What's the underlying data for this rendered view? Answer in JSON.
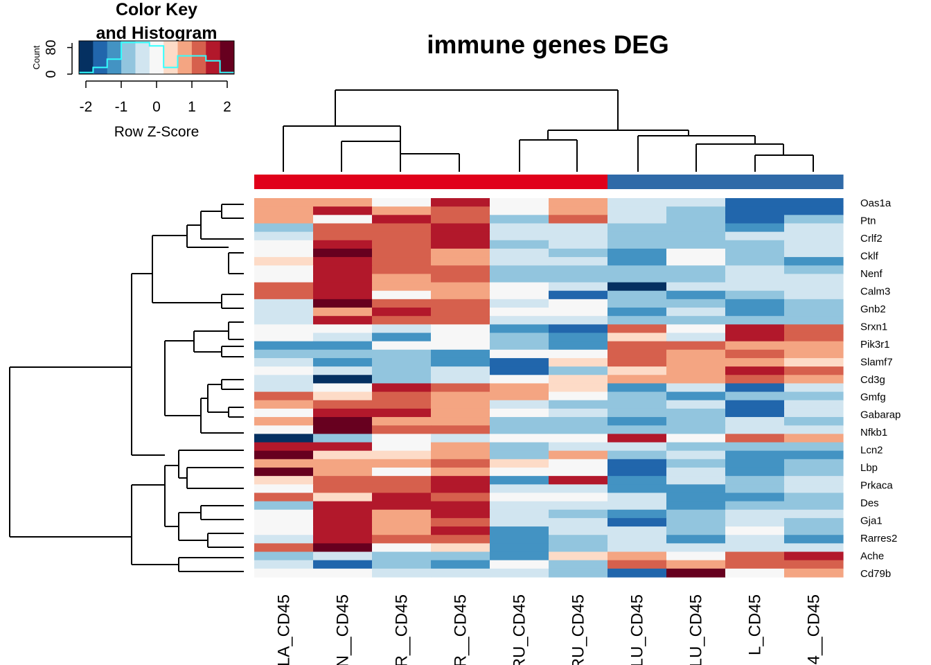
{
  "chart_data": {
    "type": "heatmap",
    "title": "immune genes DEG",
    "columns": [
      "LA_CD45",
      "N__CD45",
      "R__CD45",
      "R__CD45",
      "RU_CD45",
      "RU_CD45",
      "LU_CD45",
      "LU_CD45",
      "L_CD45",
      "4__CD45"
    ],
    "column_groups": [
      "#e0001a",
      "#e0001a",
      "#e0001a",
      "#e0001a",
      "#e0001a",
      "#e0001a",
      "#2f6aa8",
      "#2f6aa8",
      "#2f6aa8",
      "#2f6aa8"
    ],
    "rows_labeled": [
      "Oas1a",
      "Ptn",
      "Crlf2",
      "Cklf",
      "Nenf",
      "Calm3",
      "Gnb2",
      "Srxn1",
      "Pik3r1",
      "Slamf7",
      "Cd3g",
      "Gmfg",
      "Gabarap",
      "Nfkb1",
      "Lcn2",
      "Lbp",
      "Prkaca",
      "Des",
      "Gja1",
      "Rarres2",
      "Ache",
      "Cd79b"
    ],
    "row_count": 42,
    "value_range": [
      -2,
      2
    ],
    "color_scale": [
      "#053061",
      "#2166ac",
      "#4393c3",
      "#92c5de",
      "#d1e5f0",
      "#f7f7f7",
      "#fddbc7",
      "#f4a582",
      "#d6604d",
      "#b2182b",
      "#67001f"
    ],
    "values": [
      [
        0.8,
        0.8,
        0.0,
        1.5,
        0.0,
        0.8,
        -0.5,
        -0.5,
        -1.7,
        -1.7
      ],
      [
        0.8,
        1.5,
        0.8,
        1.2,
        0.0,
        0.8,
        -0.5,
        -0.8,
        -1.7,
        -1.7
      ],
      [
        0.8,
        0.0,
        1.5,
        1.2,
        -0.8,
        1.2,
        -0.5,
        -0.8,
        -1.7,
        -0.8
      ],
      [
        -0.8,
        1.2,
        1.2,
        1.5,
        -0.5,
        -0.5,
        -0.8,
        -0.8,
        -1.2,
        -0.5
      ],
      [
        -0.5,
        1.2,
        1.2,
        1.5,
        -0.5,
        -0.5,
        -0.8,
        -0.8,
        -0.5,
        -0.5
      ],
      [
        0.0,
        1.5,
        1.2,
        1.5,
        -0.8,
        -0.5,
        -0.8,
        -0.8,
        -0.8,
        -0.5
      ],
      [
        0.0,
        2.0,
        1.2,
        0.8,
        -0.5,
        -0.8,
        -1.2,
        0.0,
        -0.8,
        -0.5
      ],
      [
        0.5,
        1.5,
        1.2,
        0.8,
        -0.5,
        -0.5,
        -1.2,
        0.0,
        -0.8,
        -1.2
      ],
      [
        0.0,
        1.5,
        1.2,
        1.2,
        -0.8,
        -0.8,
        -0.8,
        -0.8,
        -0.5,
        -0.8
      ],
      [
        0.0,
        1.5,
        0.8,
        1.2,
        -0.8,
        -0.8,
        -0.8,
        -0.8,
        -0.5,
        -0.5
      ],
      [
        1.2,
        1.5,
        0.8,
        0.8,
        0.0,
        -0.5,
        -2.0,
        -0.5,
        -0.5,
        -0.5
      ],
      [
        1.2,
        1.5,
        0.0,
        0.8,
        0.0,
        -1.7,
        -0.8,
        -1.2,
        -0.8,
        -0.5
      ],
      [
        -0.5,
        2.0,
        1.2,
        1.2,
        -0.5,
        0.0,
        -0.8,
        -0.8,
        -1.2,
        -0.8
      ],
      [
        -0.5,
        0.8,
        1.5,
        1.2,
        0.0,
        0.0,
        -1.2,
        -0.5,
        -1.2,
        -0.8
      ],
      [
        -0.5,
        1.5,
        1.2,
        1.2,
        -0.5,
        -0.5,
        -0.8,
        -0.8,
        -0.8,
        -0.8
      ],
      [
        0.0,
        0.0,
        -0.5,
        0.0,
        -1.2,
        -1.7,
        1.2,
        0.0,
        1.5,
        1.2
      ],
      [
        0.0,
        -0.5,
        -1.2,
        0.0,
        -0.8,
        -1.2,
        0.5,
        -0.5,
        1.5,
        1.2
      ],
      [
        -1.2,
        -1.2,
        0.0,
        0.0,
        -0.8,
        -1.2,
        1.2,
        1.2,
        0.8,
        0.8
      ],
      [
        -0.8,
        -0.8,
        -0.8,
        -1.2,
        0.0,
        0.0,
        1.2,
        0.8,
        1.2,
        0.8
      ],
      [
        -0.5,
        -1.2,
        -0.8,
        -1.2,
        -1.7,
        0.5,
        1.2,
        0.8,
        0.8,
        0.5
      ],
      [
        0.0,
        -0.5,
        -0.8,
        -0.5,
        -1.7,
        -0.8,
        0.5,
        0.8,
        1.5,
        1.2
      ],
      [
        -0.5,
        -2.0,
        -0.8,
        -0.5,
        0.0,
        0.5,
        0.8,
        0.8,
        1.2,
        0.8
      ],
      [
        -0.5,
        0.0,
        1.5,
        1.2,
        0.8,
        0.5,
        -1.2,
        -0.5,
        -1.7,
        -0.5
      ],
      [
        1.2,
        0.5,
        1.2,
        0.8,
        0.8,
        0.0,
        -0.8,
        -1.2,
        -0.8,
        -0.8
      ],
      [
        0.8,
        1.2,
        1.2,
        0.8,
        -0.5,
        -0.8,
        -0.8,
        -0.5,
        -1.7,
        -0.5
      ],
      [
        0.0,
        1.5,
        1.5,
        0.8,
        0.0,
        -0.5,
        -0.8,
        -0.8,
        -1.7,
        -0.5
      ],
      [
        0.8,
        2.0,
        0.8,
        0.8,
        -0.8,
        -0.8,
        -1.2,
        -0.8,
        -0.5,
        -0.8
      ],
      [
        0.0,
        2.0,
        1.2,
        1.2,
        -0.8,
        -0.8,
        -0.8,
        -0.8,
        -0.5,
        -0.5
      ],
      [
        -2.0,
        -0.8,
        0.0,
        -0.5,
        0.0,
        0.0,
        1.5,
        0.0,
        1.2,
        0.8
      ],
      [
        1.5,
        1.5,
        0.0,
        0.8,
        -0.8,
        -0.5,
        -0.5,
        -0.8,
        -0.8,
        -0.8
      ],
      [
        2.0,
        0.5,
        0.5,
        0.8,
        -0.8,
        0.8,
        -0.8,
        -0.5,
        -1.2,
        -1.2
      ],
      [
        0.8,
        0.8,
        0.8,
        1.2,
        0.5,
        0.0,
        -1.7,
        -0.8,
        -1.2,
        -0.8
      ],
      [
        2.0,
        0.8,
        0.0,
        0.8,
        0.0,
        0.0,
        -1.7,
        -0.5,
        -1.2,
        -0.8
      ],
      [
        0.5,
        1.2,
        1.2,
        1.5,
        -1.2,
        1.5,
        -1.2,
        -0.5,
        -0.8,
        -0.5
      ],
      [
        0.0,
        1.2,
        1.2,
        1.5,
        -0.5,
        -0.5,
        -1.2,
        -1.2,
        -0.8,
        -0.5
      ],
      [
        1.2,
        0.5,
        1.5,
        1.2,
        0.0,
        0.0,
        -0.5,
        -1.2,
        -1.2,
        -0.8
      ],
      [
        -0.8,
        1.5,
        1.5,
        1.5,
        -0.5,
        -0.5,
        -0.5,
        -1.2,
        -0.8,
        -0.8
      ],
      [
        0.0,
        1.5,
        0.8,
        1.5,
        -0.5,
        -0.8,
        -1.2,
        -0.8,
        -0.5,
        -0.5
      ],
      [
        0.0,
        1.5,
        0.8,
        1.2,
        -0.5,
        -0.5,
        -1.7,
        -0.8,
        -0.5,
        -0.8
      ],
      [
        0.0,
        1.5,
        0.8,
        1.5,
        -1.2,
        -0.5,
        -0.5,
        -0.8,
        0.0,
        -0.8
      ],
      [
        -0.5,
        1.5,
        1.2,
        1.2,
        -1.2,
        -0.8,
        -0.5,
        -1.2,
        -0.5,
        -1.2
      ],
      [
        1.2,
        2.0,
        0.0,
        0.5,
        -1.2,
        -0.8,
        -0.5,
        -0.5,
        -0.5,
        -0.5
      ]
    ],
    "tail_rows": [
      [
        -0.8,
        -0.5,
        -0.8,
        -0.8,
        -1.2,
        0.5,
        0.8,
        0.0,
        1.2,
        1.5
      ],
      [
        -0.5,
        -1.7,
        -0.8,
        -1.2,
        0.0,
        -0.8,
        1.2,
        0.8,
        1.2,
        1.2
      ],
      [
        0.0,
        0.0,
        -0.5,
        -0.5,
        -0.5,
        -0.8,
        -1.7,
        2.0,
        0.0,
        0.8
      ]
    ],
    "color_key": {
      "title_line1": "Color Key",
      "title_line2": "and Histogram",
      "xlabel": "Row Z-Score",
      "ylabel": "Count",
      "xticks": [
        "-2",
        "-1",
        "0",
        "1",
        "2"
      ],
      "yticks": [
        "0",
        "80"
      ],
      "histogram_color": "#33ffff",
      "histogram": [
        5,
        20,
        45,
        95,
        95,
        85,
        20,
        55,
        55,
        40,
        5
      ]
    }
  }
}
